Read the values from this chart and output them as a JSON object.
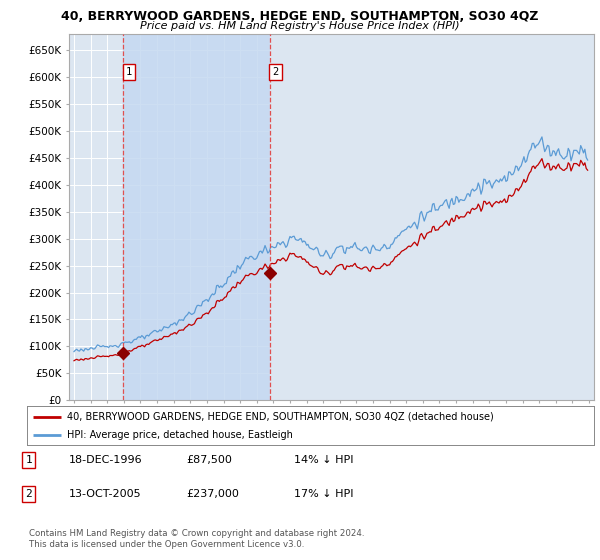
{
  "title": "40, BERRYWOOD GARDENS, HEDGE END, SOUTHAMPTON, SO30 4QZ",
  "subtitle": "Price paid vs. HM Land Registry's House Price Index (HPI)",
  "legend_line1": "40, BERRYWOOD GARDENS, HEDGE END, SOUTHAMPTON, SO30 4QZ (detached house)",
  "legend_line2": "HPI: Average price, detached house, Eastleigh",
  "transaction1_label": "1",
  "transaction1_date": "18-DEC-1996",
  "transaction1_price": "£87,500",
  "transaction1_hpi": "14% ↓ HPI",
  "transaction2_label": "2",
  "transaction2_date": "13-OCT-2005",
  "transaction2_price": "£237,000",
  "transaction2_hpi": "17% ↓ HPI",
  "footnote": "Contains HM Land Registry data © Crown copyright and database right 2024.\nThis data is licensed under the Open Government Licence v3.0.",
  "hpi_color": "#5b9bd5",
  "price_color": "#c00000",
  "marker_color": "#8b0000",
  "dashed_line_color": "#e05050",
  "background_color": "#ffffff",
  "plot_bg_color": "#dce6f1",
  "grid_color": "#ffffff",
  "shade_color": "#c5d9f1",
  "xlim_start": 1993.7,
  "xlim_end": 2025.3,
  "ylim_min": 0,
  "ylim_max": 680000,
  "yticks": [
    0,
    50000,
    100000,
    150000,
    200000,
    250000,
    300000,
    350000,
    400000,
    450000,
    500000,
    550000,
    600000,
    650000
  ],
  "ytick_labels": [
    "£0",
    "£50K",
    "£100K",
    "£150K",
    "£200K",
    "£250K",
    "£300K",
    "£350K",
    "£400K",
    "£450K",
    "£500K",
    "£550K",
    "£600K",
    "£650K"
  ],
  "transaction1_x": 1996.96,
  "transaction1_y": 87500,
  "transaction2_x": 2005.78,
  "transaction2_y": 237000
}
